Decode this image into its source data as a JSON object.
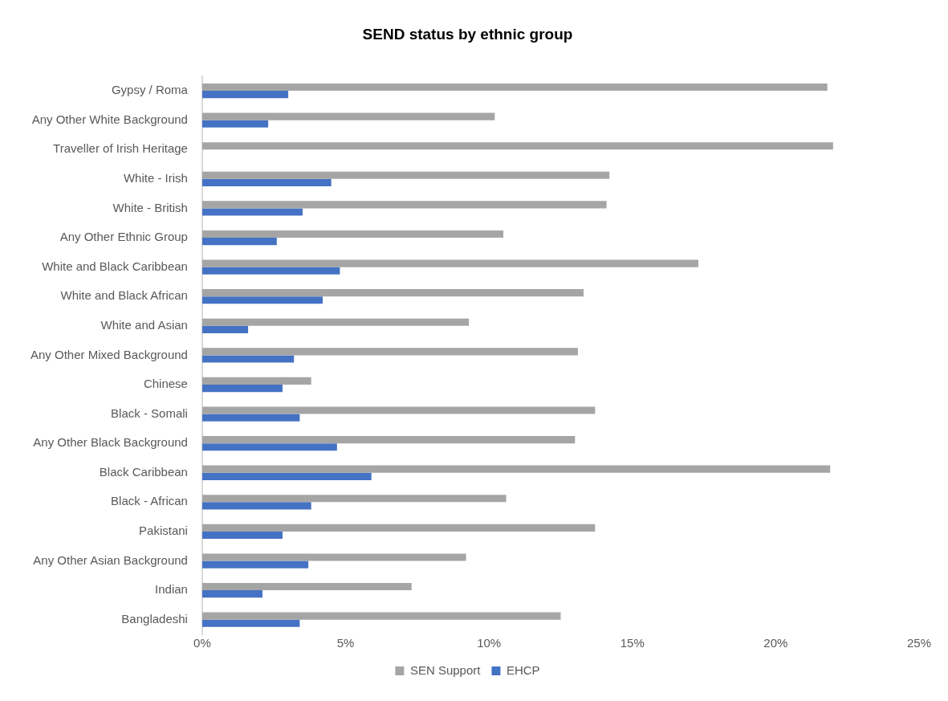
{
  "chart_data": {
    "type": "bar",
    "orientation": "horizontal",
    "title": "SEND status by ethnic group",
    "categories": [
      "Gypsy / Roma",
      "Any Other White Background",
      "Traveller of Irish Heritage",
      "White - Irish",
      "White - British",
      "Any Other Ethnic Group",
      "White and Black Caribbean",
      "White and Black African",
      "White and Asian",
      "Any Other Mixed Background",
      "Chinese",
      "Black - Somali",
      "Any Other Black Background",
      "Black Caribbean",
      "Black - African",
      "Pakistani",
      "Any Other Asian Background",
      "Indian",
      "Bangladeshi"
    ],
    "series": [
      {
        "name": "SEN Support",
        "color": "#a5a5a5",
        "values": [
          21.8,
          10.2,
          22.0,
          14.2,
          14.1,
          10.5,
          17.3,
          13.3,
          9.3,
          13.1,
          3.8,
          13.7,
          13.0,
          21.9,
          10.6,
          13.7,
          9.2,
          7.3,
          12.5
        ]
      },
      {
        "name": "EHCP",
        "color": "#4472c4",
        "values": [
          3.0,
          2.3,
          null,
          4.5,
          3.5,
          2.6,
          4.8,
          4.2,
          1.6,
          3.2,
          2.8,
          3.4,
          4.7,
          5.9,
          3.8,
          2.8,
          3.7,
          2.1,
          3.4
        ]
      }
    ],
    "xlim": [
      0,
      25
    ],
    "xticks": [
      {
        "value": 0,
        "label": "0%"
      },
      {
        "value": 5,
        "label": "5%"
      },
      {
        "value": 10,
        "label": "10%"
      },
      {
        "value": 15,
        "label": "15%"
      },
      {
        "value": 20,
        "label": "20%"
      },
      {
        "value": 25,
        "label": "25%"
      }
    ],
    "grid": false,
    "legend": "bottom"
  }
}
